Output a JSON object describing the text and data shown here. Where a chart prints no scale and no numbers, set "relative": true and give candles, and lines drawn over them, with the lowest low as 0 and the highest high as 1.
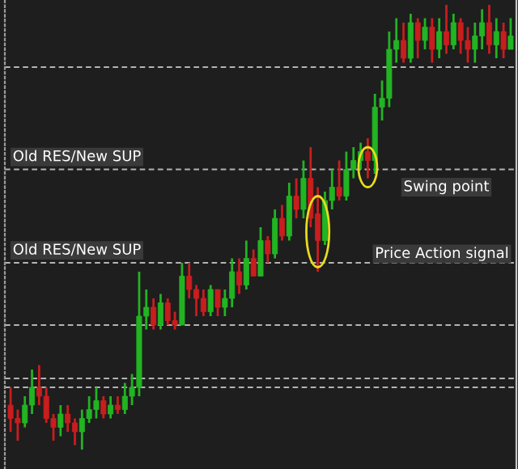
{
  "chart_data": {
    "type": "candlestick",
    "relative": true,
    "categories": [
      null,
      null,
      null,
      null,
      null,
      null,
      null,
      null,
      null,
      null,
      null,
      null,
      null,
      null,
      null,
      null,
      null,
      null,
      null,
      null,
      null,
      null,
      null,
      null,
      null,
      null,
      null,
      null,
      null,
      null,
      null,
      null,
      null,
      null,
      null,
      null,
      null,
      null,
      null,
      null,
      null,
      null,
      null,
      null,
      null,
      null,
      null,
      null,
      null,
      null,
      null,
      null,
      null,
      null,
      null,
      null,
      null,
      null,
      null,
      null,
      null,
      null,
      null,
      null,
      null,
      null,
      null,
      null,
      null,
      null,
      null
    ],
    "ohlc": [
      [
        0.1,
        0.14,
        0.04,
        0.07
      ],
      [
        0.07,
        0.09,
        0.02,
        0.06
      ],
      [
        0.06,
        0.12,
        0.05,
        0.1
      ],
      [
        0.1,
        0.18,
        0.08,
        0.14
      ],
      [
        0.14,
        0.19,
        0.1,
        0.12
      ],
      [
        0.12,
        0.14,
        0.06,
        0.07
      ],
      [
        0.07,
        0.08,
        0.02,
        0.05
      ],
      [
        0.05,
        0.1,
        0.03,
        0.08
      ],
      [
        0.08,
        0.1,
        0.04,
        0.06
      ],
      [
        0.06,
        0.07,
        0.01,
        0.04
      ],
      [
        0.04,
        0.09,
        0,
        0.07
      ],
      [
        0.07,
        0.12,
        0.06,
        0.09
      ],
      [
        0.09,
        0.14,
        0.07,
        0.11
      ],
      [
        0.11,
        0.12,
        0.07,
        0.08
      ],
      [
        0.08,
        0.12,
        0.07,
        0.1
      ],
      [
        0.1,
        0.12,
        0.08,
        0.09
      ],
      [
        0.09,
        0.15,
        0.08,
        0.12
      ],
      [
        0.12,
        0.17,
        0.1,
        0.14
      ],
      [
        0.14,
        0.4,
        0.12,
        0.3
      ],
      [
        0.3,
        0.36,
        0.27,
        0.32
      ],
      [
        0.32,
        0.34,
        0.27,
        0.28
      ],
      [
        0.28,
        0.35,
        0.27,
        0.33
      ],
      [
        0.33,
        0.34,
        0.28,
        0.29
      ],
      [
        0.29,
        0.31,
        0.27,
        0.28
      ],
      [
        0.28,
        0.42,
        0.28,
        0.39
      ],
      [
        0.39,
        0.42,
        0.34,
        0.36
      ],
      [
        0.36,
        0.37,
        0.3,
        0.34
      ],
      [
        0.34,
        0.36,
        0.3,
        0.31
      ],
      [
        0.31,
        0.37,
        0.3,
        0.36
      ],
      [
        0.36,
        0.36,
        0.3,
        0.32
      ],
      [
        0.32,
        0.36,
        0.3,
        0.34
      ],
      [
        0.34,
        0.43,
        0.32,
        0.4
      ],
      [
        0.4,
        0.43,
        0.35,
        0.37
      ],
      [
        0.37,
        0.47,
        0.36,
        0.43
      ],
      [
        0.43,
        0.45,
        0.39,
        0.39
      ],
      [
        0.39,
        0.5,
        0.39,
        0.47
      ],
      [
        0.47,
        0.48,
        0.42,
        0.44
      ],
      [
        0.44,
        0.54,
        0.43,
        0.52
      ],
      [
        0.52,
        0.55,
        0.47,
        0.48
      ],
      [
        0.48,
        0.6,
        0.47,
        0.57
      ],
      [
        0.57,
        0.61,
        0.52,
        0.54
      ],
      [
        0.54,
        0.65,
        0.52,
        0.61
      ],
      [
        0.61,
        0.68,
        0.5,
        0.52
      ],
      [
        0.53,
        0.59,
        0.4,
        0.47
      ],
      [
        0.47,
        0.58,
        0.46,
        0.56
      ],
      [
        0.56,
        0.63,
        0.54,
        0.59
      ],
      [
        0.59,
        0.65,
        0.56,
        0.57
      ],
      [
        0.57,
        0.67,
        0.56,
        0.63
      ],
      [
        0.63,
        0.68,
        0.61,
        0.65
      ],
      [
        0.65,
        0.69,
        0.63,
        0.67
      ],
      [
        0.67,
        0.7,
        0.61,
        0.65
      ],
      [
        0.65,
        0.8,
        0.62,
        0.77
      ],
      [
        0.77,
        0.83,
        0.74,
        0.79
      ],
      [
        0.79,
        0.94,
        0.77,
        0.9
      ],
      [
        0.9,
        0.97,
        0.87,
        0.92
      ],
      [
        0.92,
        0.96,
        0.87,
        0.88
      ],
      [
        0.88,
        0.98,
        0.87,
        0.96
      ],
      [
        0.96,
        0.97,
        0.88,
        0.92
      ],
      [
        0.92,
        0.97,
        0.9,
        0.95
      ],
      [
        0.95,
        0.97,
        0.87,
        0.9
      ],
      [
        0.9,
        0.97,
        0.88,
        0.94
      ],
      [
        0.94,
        1.0,
        0.89,
        0.91
      ],
      [
        0.91,
        0.98,
        0.9,
        0.96
      ],
      [
        0.96,
        0.97,
        0.89,
        0.92
      ],
      [
        0.92,
        0.95,
        0.87,
        0.9
      ],
      [
        0.9,
        0.96,
        0.87,
        0.93
      ],
      [
        0.93,
        0.99,
        0.9,
        0.96
      ],
      [
        0.96,
        1.0,
        0.89,
        0.91
      ],
      [
        0.91,
        0.97,
        0.88,
        0.94
      ],
      [
        0.94,
        0.96,
        0.88,
        0.9
      ],
      [
        0.9,
        0.97,
        0.9,
        0.93
      ]
    ],
    "ref_lines": [
      {
        "axis": "y",
        "value": 0.86,
        "color": "#b4b4b4",
        "line_style": "dashed"
      },
      {
        "axis": "y",
        "value": 0.63,
        "label": "Old RES/New SUP",
        "color": "#b4b4b4",
        "line_style": "dashed"
      },
      {
        "axis": "y",
        "value": 0.42,
        "label": "Old RES/New SUP",
        "color": "#b4b4b4",
        "line_style": "dashed"
      },
      {
        "axis": "y",
        "value": 0.28,
        "color": "#b4b4b4",
        "line_style": "dashed"
      },
      {
        "axis": "y",
        "value": 0.16,
        "color": "#b4b4b4",
        "line_style": "dashed"
      },
      {
        "axis": "y",
        "value": 0.14,
        "color": "#b4b4b4",
        "line_style": "dashed"
      }
    ],
    "annotations": [
      "Swing point",
      "Price Action signal"
    ],
    "legend": false
  }
}
